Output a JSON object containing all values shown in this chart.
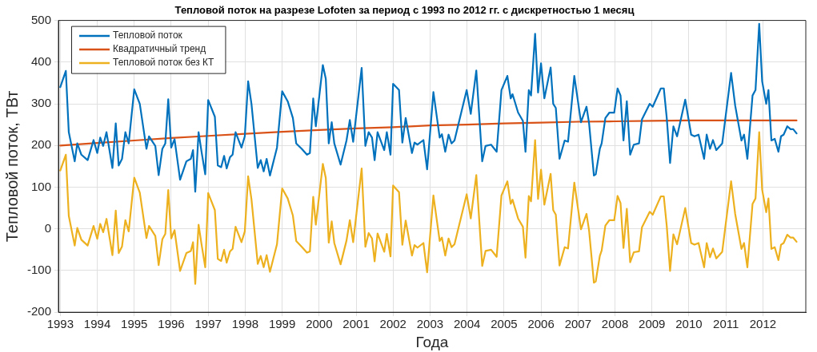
{
  "chart_data": {
    "type": "line",
    "title": "Тепловой поток на разрезе Lofoten за период с 1993 по 2012 гг. с дискретностью 1 месяц",
    "xlabel": "Года",
    "ylabel": "Тепловой поток, ТВт",
    "x": [
      1993.0,
      1993.15,
      1993.23,
      1993.39,
      1993.46,
      1993.57,
      1993.74,
      1993.9,
      1994.0,
      1994.08,
      1994.16,
      1994.25,
      1994.41,
      1994.5,
      1994.58,
      1994.67,
      1994.76,
      1994.85,
      1995.0,
      1995.15,
      1995.33,
      1995.4,
      1995.57,
      1995.66,
      1995.76,
      1995.84,
      1995.92,
      1996.0,
      1996.09,
      1996.24,
      1996.41,
      1996.53,
      1996.59,
      1996.65,
      1996.74,
      1996.82,
      1996.92,
      1997.0,
      1997.18,
      1997.26,
      1997.35,
      1997.43,
      1997.5,
      1997.59,
      1997.66,
      1997.74,
      1997.9,
      1997.99,
      1998.08,
      1998.17,
      1998.34,
      1998.42,
      1998.5,
      1998.58,
      1998.67,
      1998.86,
      1999.0,
      1999.15,
      1999.29,
      1999.38,
      1999.53,
      1999.67,
      1999.75,
      1999.84,
      1999.91,
      2000.1,
      2000.18,
      2000.26,
      2000.34,
      2000.41,
      2000.58,
      2000.74,
      2000.83,
      2000.92,
      2001.15,
      2001.25,
      2001.34,
      2001.43,
      2001.5,
      2001.58,
      2001.76,
      2001.83,
      2001.93,
      2002.0,
      2002.16,
      2002.25,
      2002.34,
      2002.51,
      2002.58,
      2002.66,
      2002.82,
      2002.92,
      2003.09,
      2003.26,
      2003.32,
      2003.41,
      2003.5,
      2003.58,
      2003.66,
      2003.99,
      2004.1,
      2004.25,
      2004.41,
      2004.5,
      2004.65,
      2004.8,
      2004.93,
      2005.09,
      2005.18,
      2005.23,
      2005.38,
      2005.51,
      2005.58,
      2005.67,
      2005.73,
      2005.84,
      2005.92,
      2006.0,
      2006.09,
      2006.26,
      2006.33,
      2006.4,
      2006.5,
      2006.64,
      2006.73,
      2006.9,
      2007.08,
      2007.23,
      2007.3,
      2007.43,
      2007.48,
      2007.59,
      2007.64,
      2007.74,
      2007.85,
      2007.98,
      2008.07,
      2008.15,
      2008.23,
      2008.32,
      2008.41,
      2008.51,
      2008.65,
      2008.73,
      2008.94,
      2009.02,
      2009.24,
      2009.32,
      2009.4,
      2009.49,
      2009.58,
      2009.68,
      2009.9,
      2010.06,
      2010.15,
      2010.26,
      2010.41,
      2010.48,
      2010.57,
      2010.65,
      2010.74,
      2010.9,
      2011.14,
      2011.25,
      2011.42,
      2011.49,
      2011.58,
      2011.72,
      2011.8,
      2011.9,
      2011.98,
      2012.09,
      2012.15,
      2012.23,
      2012.32,
      2012.42,
      2012.49,
      2012.56,
      2012.66,
      2012.75,
      2012.82,
      2012.91
    ],
    "series": [
      {
        "name": "Тепловой поток",
        "color": "#0072bd",
        "values": [
          340,
          379,
          232,
          162,
          205,
          178,
          165,
          213,
          182,
          219,
          199,
          232,
          146,
          253,
          152,
          168,
          232,
          205,
          335,
          300,
          192,
          222,
          199,
          129,
          192,
          205,
          311,
          195,
          215,
          118,
          162,
          168,
          189,
          89,
          232,
          185,
          131,
          309,
          269,
          152,
          148,
          175,
          145,
          172,
          178,
          232,
          195,
          222,
          354,
          300,
          146,
          165,
          138,
          168,
          128,
          195,
          330,
          306,
          266,
          205,
          192,
          178,
          182,
          313,
          246,
          393,
          360,
          205,
          256,
          205,
          154,
          212,
          261,
          209,
          386,
          199,
          232,
          219,
          165,
          232,
          189,
          232,
          178,
          348,
          333,
          207,
          266,
          182,
          207,
          202,
          213,
          143,
          328,
          219,
          227,
          185,
          226,
          205,
          212,
          333,
          276,
          380,
          162,
          199,
          202,
          185,
          333,
          367,
          313,
          323,
          279,
          259,
          185,
          333,
          320,
          468,
          327,
          397,
          313,
          387,
          300,
          290,
          168,
          212,
          209,
          367,
          256,
          293,
          253,
          128,
          131,
          192,
          205,
          266,
          279,
          279,
          337,
          320,
          212,
          306,
          178,
          202,
          205,
          263,
          300,
          293,
          337,
          337,
          266,
          158,
          246,
          222,
          310,
          226,
          222,
          226,
          168,
          226,
          192,
          213,
          189,
          205,
          374,
          296,
          212,
          226,
          168,
          320,
          333,
          492,
          354,
          300,
          333,
          212,
          216,
          185,
          222,
          226,
          246,
          239,
          239,
          229
        ]
      },
      {
        "name": "Квадратичный тренд",
        "color": "#d95319",
        "x": [
          1993,
          1994,
          1995,
          1996,
          1997,
          1998,
          1999,
          2000,
          2001,
          2002,
          2003,
          2004,
          2005,
          2006,
          2007,
          2008,
          2009,
          2010,
          2011,
          2012,
          2012.91
        ],
        "values": [
          200,
          206,
          212,
          218,
          223,
          228,
          233,
          237,
          241,
          244,
          248,
          250,
          253,
          255,
          257,
          258,
          259,
          260,
          260,
          260,
          260
        ]
      },
      {
        "name": "Тепловой поток без КТ",
        "color": "#edb120",
        "values": [
          140,
          178,
          31,
          -40,
          2,
          -26,
          -40,
          7,
          -24,
          12,
          -8,
          24,
          -63,
          44,
          -58,
          -42,
          21,
          -6,
          123,
          87,
          -22,
          7,
          -17,
          -87,
          -25,
          -12,
          93,
          -23,
          -3,
          -101,
          -58,
          -53,
          -32,
          -132,
          10,
          -37,
          -92,
          86,
          45,
          -72,
          -77,
          -50,
          -81,
          -54,
          -48,
          5,
          -32,
          -6,
          126,
          71,
          -84,
          -65,
          -92,
          -63,
          -103,
          -37,
          97,
          73,
          32,
          -29,
          -43,
          -57,
          -54,
          77,
          10,
          156,
          122,
          -33,
          18,
          -34,
          -85,
          -28,
          21,
          -32,
          145,
          -43,
          -10,
          -23,
          -78,
          -11,
          -55,
          -12,
          -66,
          104,
          88,
          -38,
          20,
          -64,
          -39,
          -45,
          -34,
          -104,
          80,
          -29,
          -21,
          -64,
          -23,
          -44,
          -37,
          83,
          25,
          129,
          -89,
          -53,
          -50,
          -67,
          80,
          114,
          60,
          70,
          25,
          5,
          -69,
          79,
          66,
          213,
          72,
          142,
          58,
          132,
          45,
          34,
          -88,
          -44,
          -47,
          111,
          -1,
          36,
          -4,
          -129,
          -126,
          -65,
          -52,
          8,
          21,
          21,
          79,
          62,
          -46,
          48,
          -80,
          -56,
          -54,
          4,
          41,
          34,
          78,
          78,
          7,
          -101,
          -13,
          -37,
          50,
          -34,
          -38,
          -34,
          -92,
          -34,
          -68,
          -47,
          -71,
          -55,
          114,
          36,
          -48,
          -34,
          -92,
          60,
          73,
          232,
          94,
          40,
          73,
          -48,
          -44,
          -75,
          -38,
          -34,
          -14,
          -21,
          -21,
          -31
        ]
      }
    ],
    "xlim": [
      1992.95,
      2013.16
    ],
    "xticks": [
      1993,
      1994,
      1995,
      1996,
      1997,
      1998,
      1999,
      2000,
      2001,
      2002,
      2003,
      2004,
      2005,
      2006,
      2007,
      2008,
      2009,
      2010,
      2011,
      2012
    ],
    "ylim": [
      -200,
      500
    ],
    "yticks": [
      -200,
      -100,
      0,
      100,
      200,
      300,
      400,
      500
    ],
    "grid": true,
    "legend": "top left",
    "marker": "none",
    "line_style": "solid"
  }
}
